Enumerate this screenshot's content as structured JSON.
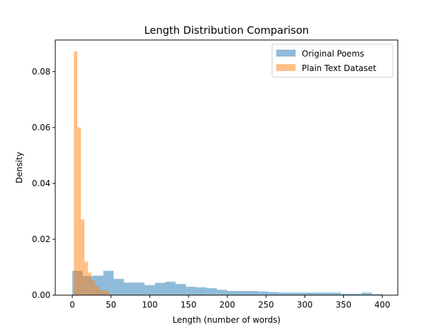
{
  "chart_data": {
    "type": "histogram",
    "title": "Length Distribution Comparison",
    "xlabel": "Length (number of words)",
    "ylabel": "Density",
    "xlim": [
      -22,
      420
    ],
    "ylim": [
      0,
      0.0913
    ],
    "xticks": [
      0,
      50,
      100,
      150,
      200,
      250,
      300,
      350,
      400
    ],
    "yticks": [
      0.0,
      0.02,
      0.04,
      0.06,
      0.08
    ],
    "ytick_labels": [
      "0.00",
      "0.02",
      "0.04",
      "0.06",
      "0.08"
    ],
    "legend_position": "upper right",
    "grid": false,
    "series": [
      {
        "name": "Original Poems",
        "color": "#1f77b4",
        "alpha": 0.5,
        "bin_edges": [
          0,
          13.3,
          26.7,
          40,
          53.3,
          66.7,
          80,
          93.3,
          106.7,
          120,
          133.3,
          146.7,
          160,
          173.3,
          186.7,
          200,
          213.3,
          226.7,
          240,
          253.3,
          266.7,
          280,
          293.3,
          306.7,
          320,
          333.3,
          346.7,
          360,
          373.3,
          386.7,
          400
        ],
        "densities": [
          0.0087,
          0.0068,
          0.007,
          0.0087,
          0.0058,
          0.0045,
          0.0045,
          0.0036,
          0.0044,
          0.0048,
          0.004,
          0.003,
          0.0028,
          0.0025,
          0.0019,
          0.0015,
          0.0015,
          0.0015,
          0.0013,
          0.0011,
          0.0009,
          0.0009,
          0.0009,
          0.0009,
          0.0009,
          0.0009,
          0.0005,
          0.0005,
          0.0009,
          0.0004
        ]
      },
      {
        "name": "Plain Text Dataset",
        "color": "#ff7f0e",
        "alpha": 0.5,
        "bin_edges": [
          2,
          6.55,
          11.1,
          15.65,
          20.2,
          24.75,
          29.3,
          33.85,
          38.4,
          42.95,
          47.5
        ],
        "densities": [
          0.0872,
          0.06,
          0.0271,
          0.012,
          0.008,
          0.0052,
          0.0032,
          0.0022,
          0.0016,
          0.0016
        ]
      }
    ]
  }
}
